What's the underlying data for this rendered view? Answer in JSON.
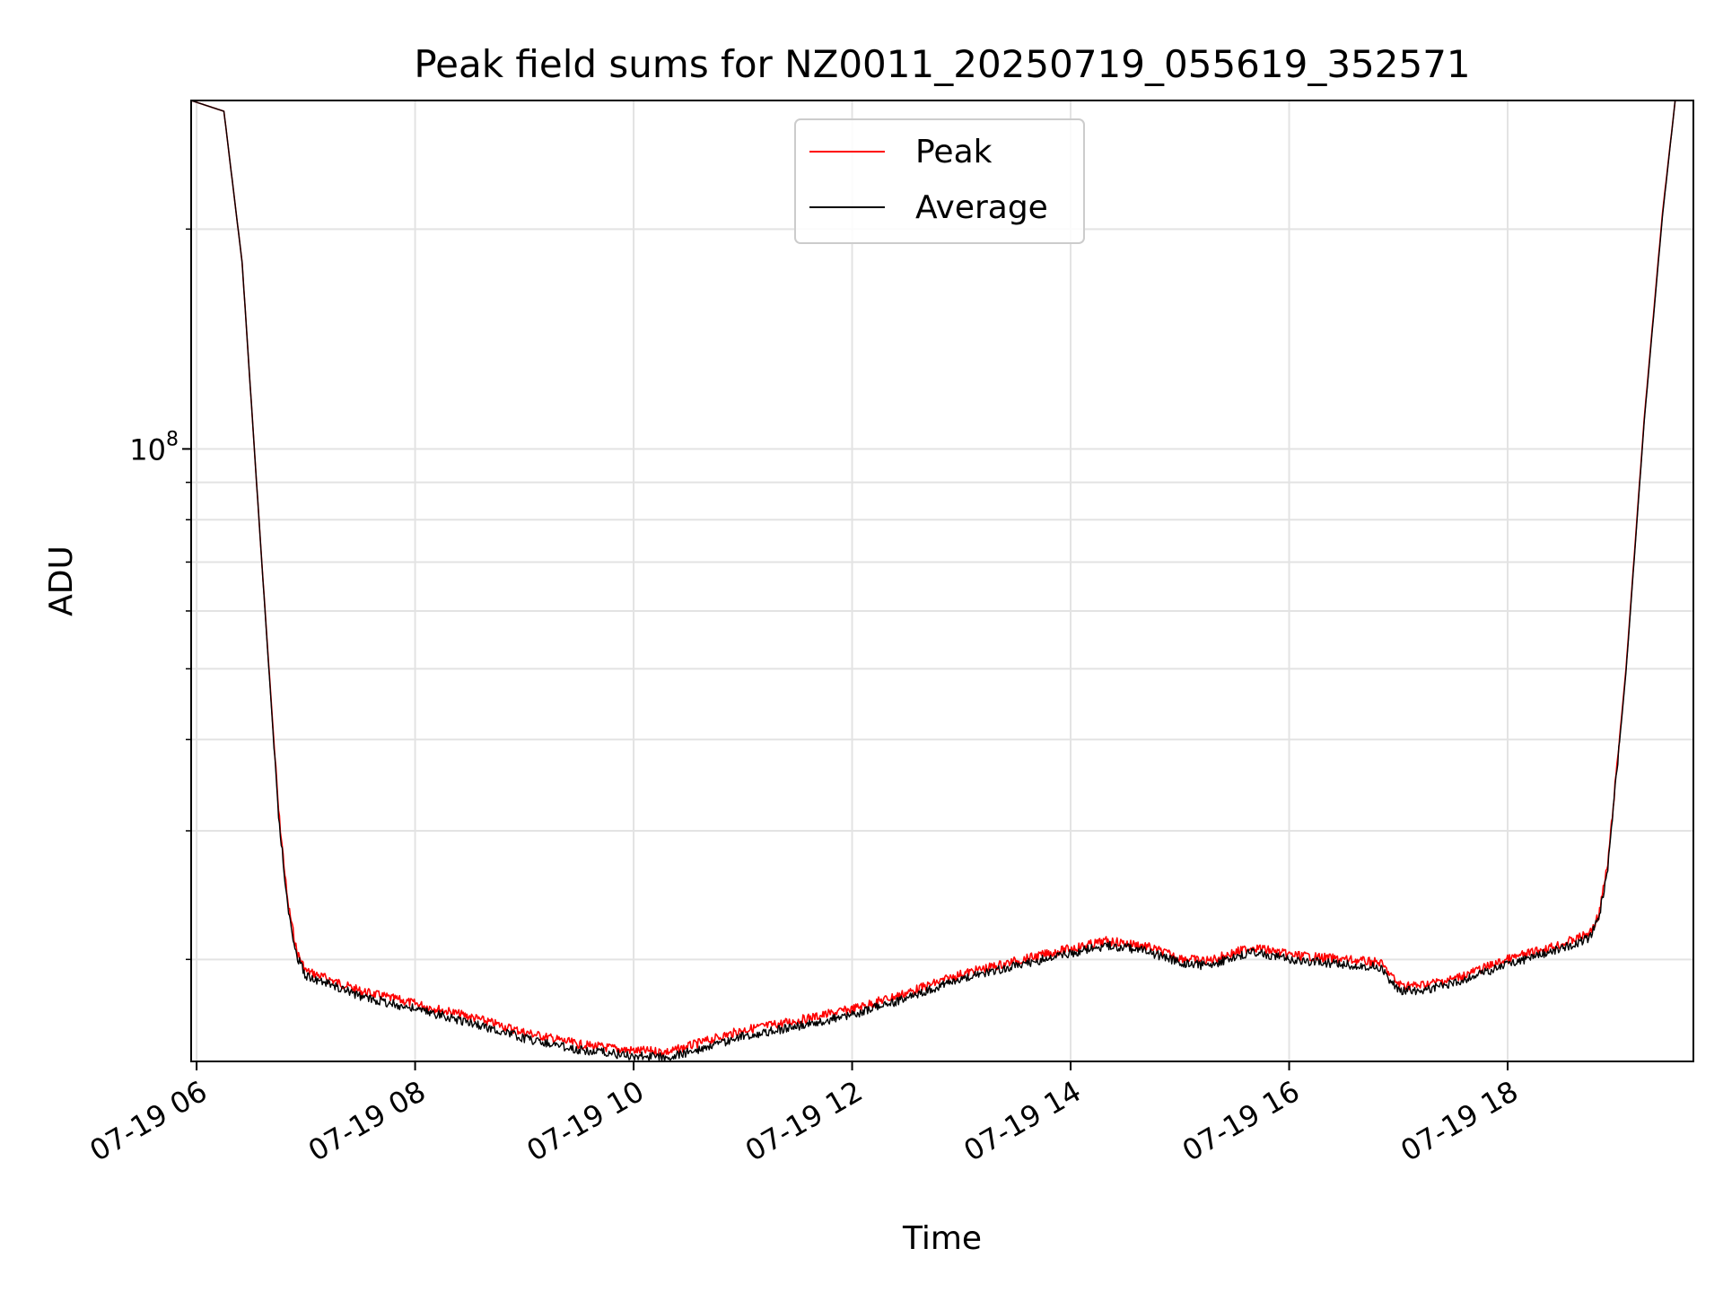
{
  "chart_data": {
    "type": "line",
    "title": "Peak field sums for NZ0011_20250719_055619_352571",
    "xlabel": "Time",
    "ylabel": "ADU",
    "yscale": "log",
    "ylim": [
      14500000,
      300000000
    ],
    "xlim": [
      "07-19 05:57",
      "07-19 19:42"
    ],
    "grid": true,
    "legend_position": "top-center",
    "x_ticks": [
      {
        "t": "07-19 06:00",
        "label": "07-19 06"
      },
      {
        "t": "07-19 08:00",
        "label": "07-19 08"
      },
      {
        "t": "07-19 10:00",
        "label": "07-19 10"
      },
      {
        "t": "07-19 12:00",
        "label": "07-19 12"
      },
      {
        "t": "07-19 14:00",
        "label": "07-19 14"
      },
      {
        "t": "07-19 16:00",
        "label": "07-19 16"
      },
      {
        "t": "07-19 18:00",
        "label": "07-19 18"
      }
    ],
    "y_major_ticks": [
      {
        "value": 100000000,
        "base": "10",
        "exp": "8"
      }
    ],
    "y_minor_ticks": [
      20000000,
      30000000,
      40000000,
      50000000,
      60000000,
      70000000,
      80000000,
      90000000,
      200000000
    ],
    "series": [
      {
        "name": "Peak",
        "color": "#ff0000",
        "x": [
          "07-19 05:57",
          "07-19 06:15",
          "07-19 06:25",
          "07-19 06:35",
          "07-19 06:45",
          "07-19 06:50",
          "07-19 06:55",
          "07-19 07:00",
          "07-19 07:15",
          "07-19 07:30",
          "07-19 08:00",
          "07-19 08:30",
          "07-19 09:00",
          "07-19 09:30",
          "07-19 10:00",
          "07-19 10:20",
          "07-19 10:45",
          "07-19 11:00",
          "07-19 11:30",
          "07-19 12:00",
          "07-19 12:30",
          "07-19 13:00",
          "07-19 13:30",
          "07-19 14:00",
          "07-19 14:20",
          "07-19 14:40",
          "07-19 15:00",
          "07-19 15:15",
          "07-19 15:40",
          "07-19 16:00",
          "07-19 16:30",
          "07-19 16:50",
          "07-19 17:00",
          "07-19 17:10",
          "07-19 17:30",
          "07-19 18:00",
          "07-19 18:30",
          "07-19 18:45",
          "07-19 18:50",
          "07-19 18:55",
          "07-19 19:05",
          "07-19 19:15",
          "07-19 19:25",
          "07-19 19:32",
          "07-19 19:42"
        ],
        "values": [
          300000000,
          290000000,
          180000000,
          75000000,
          32000000,
          24000000,
          20500000,
          19300000,
          18700000,
          18100000,
          17400000,
          16700000,
          15900000,
          15300000,
          15000000,
          14950000,
          15600000,
          16000000,
          16500000,
          17100000,
          18000000,
          19100000,
          19900000,
          20700000,
          21200000,
          20900000,
          20100000,
          19900000,
          20800000,
          20300000,
          20000000,
          19800000,
          18500000,
          18400000,
          18800000,
          20000000,
          21000000,
          21700000,
          23000000,
          27000000,
          50000000,
          110000000,
          210000000,
          300000000,
          300000000
        ]
      },
      {
        "name": "Average",
        "color": "#000000",
        "x": [
          "07-19 05:57",
          "07-19 06:15",
          "07-19 06:25",
          "07-19 06:35",
          "07-19 06:45",
          "07-19 06:50",
          "07-19 06:55",
          "07-19 07:00",
          "07-19 07:15",
          "07-19 07:30",
          "07-19 08:00",
          "07-19 08:30",
          "07-19 09:00",
          "07-19 09:30",
          "07-19 10:00",
          "07-19 10:20",
          "07-19 10:45",
          "07-19 11:00",
          "07-19 11:30",
          "07-19 12:00",
          "07-19 12:30",
          "07-19 13:00",
          "07-19 13:30",
          "07-19 14:00",
          "07-19 14:20",
          "07-19 14:40",
          "07-19 15:00",
          "07-19 15:15",
          "07-19 15:40",
          "07-19 16:00",
          "07-19 16:30",
          "07-19 16:50",
          "07-19 17:00",
          "07-19 17:10",
          "07-19 17:30",
          "07-19 18:00",
          "07-19 18:30",
          "07-19 18:45",
          "07-19 18:50",
          "07-19 18:55",
          "07-19 19:05",
          "07-19 19:15",
          "07-19 19:25",
          "07-19 19:32",
          "07-19 19:42"
        ],
        "values": [
          300000000,
          290000000,
          180000000,
          75000000,
          31500000,
          23600000,
          20200000,
          19000000,
          18400000,
          17800000,
          17100000,
          16400000,
          15600000,
          15050000,
          14750000,
          14700000,
          15300000,
          15700000,
          16200000,
          16800000,
          17700000,
          18800000,
          19600000,
          20400000,
          20900000,
          20600000,
          19800000,
          19600000,
          20500000,
          20000000,
          19700000,
          19500000,
          18150000,
          18100000,
          18500000,
          19700000,
          20700000,
          21400000,
          22700000,
          26600000,
          49500000,
          109000000,
          208000000,
          300000000,
          300000000
        ]
      }
    ]
  }
}
